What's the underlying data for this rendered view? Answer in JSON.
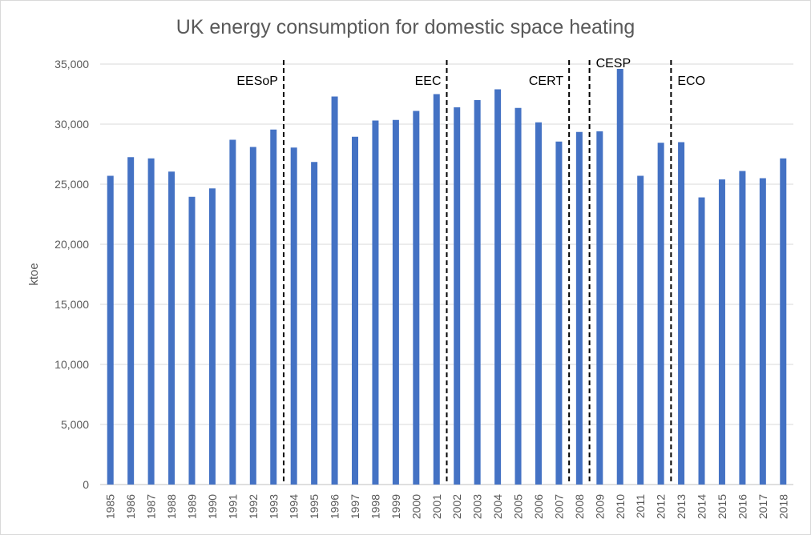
{
  "chart_data": {
    "type": "bar",
    "title": "UK energy consumption for domestic space heating",
    "xlabel": "",
    "ylabel": "ktoe",
    "ylim": [
      0,
      35000
    ],
    "y_ticks": [
      "0",
      "5,000",
      "10,000",
      "15,000",
      "20,000",
      "25,000",
      "30,000",
      "35,000"
    ],
    "grid": true,
    "bar_color": "#4472C4",
    "categories": [
      "1985",
      "1986",
      "1987",
      "1988",
      "1989",
      "1990",
      "1991",
      "1992",
      "1993",
      "1994",
      "1995",
      "1996",
      "1997",
      "1998",
      "1999",
      "2000",
      "2001",
      "2002",
      "2003",
      "2004",
      "2005",
      "2006",
      "2007",
      "2008",
      "2009",
      "2010",
      "2011",
      "2012",
      "2013",
      "2014",
      "2015",
      "2016",
      "2017",
      "2018"
    ],
    "values": [
      25700,
      27250,
      27150,
      26050,
      23950,
      24650,
      28700,
      28100,
      29550,
      28050,
      26850,
      32300,
      28950,
      30300,
      30350,
      31100,
      32500,
      31400,
      32000,
      32900,
      31350,
      30150,
      28550,
      29350,
      29400,
      34600,
      25700,
      28450,
      28500,
      23900,
      25400,
      26100,
      25500,
      27150
    ],
    "annotations": [
      {
        "label": "EESoP",
        "after_category": "1993"
      },
      {
        "label": "EEC",
        "after_category": "2001"
      },
      {
        "label": "CERT",
        "after_category": "2007"
      },
      {
        "label": "CESP",
        "after_category": "2008"
      },
      {
        "label": "ECO",
        "after_category": "2012"
      }
    ]
  }
}
